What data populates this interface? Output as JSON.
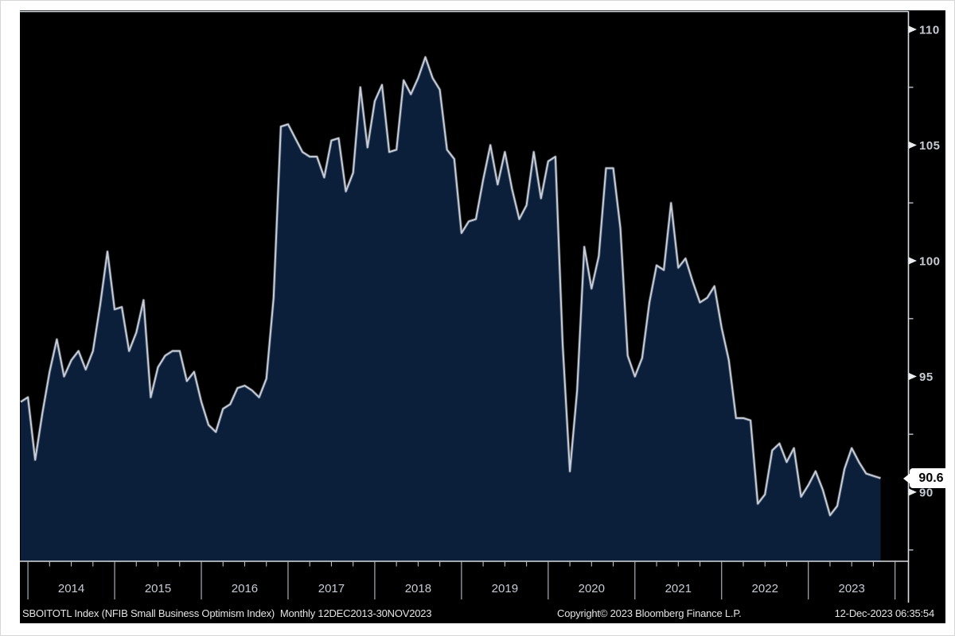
{
  "chart_data": {
    "type": "area",
    "title": "",
    "series": [
      {
        "name": "SBOITOTL Index (NFIB Small Business Optimism Index)",
        "values": [
          93.9,
          94.1,
          91.4,
          93.4,
          95.2,
          96.6,
          95.0,
          95.7,
          96.1,
          95.3,
          96.1,
          98.1,
          100.4,
          97.9,
          98.0,
          96.1,
          96.9,
          98.3,
          94.1,
          95.4,
          95.9,
          96.1,
          96.1,
          94.8,
          95.2,
          93.9,
          92.9,
          92.6,
          93.6,
          93.8,
          94.5,
          94.6,
          94.4,
          94.1,
          94.9,
          98.4,
          105.8,
          105.9,
          105.3,
          104.7,
          104.5,
          104.5,
          103.6,
          105.2,
          105.3,
          103.0,
          103.8,
          107.5,
          104.9,
          106.9,
          107.6,
          104.7,
          104.8,
          107.8,
          107.2,
          107.9,
          108.8,
          107.9,
          107.4,
          104.8,
          104.4,
          101.2,
          101.7,
          101.8,
          103.5,
          105.0,
          103.3,
          104.7,
          103.1,
          101.8,
          102.4,
          104.7,
          102.7,
          104.3,
          104.5,
          96.4,
          90.9,
          94.4,
          100.6,
          98.8,
          100.2,
          104.0,
          104.0,
          101.4,
          95.9,
          95.0,
          95.8,
          98.2,
          99.8,
          99.6,
          102.5,
          99.7,
          100.1,
          99.1,
          98.2,
          98.4,
          98.9,
          97.1,
          95.7,
          93.2,
          93.2,
          93.1,
          89.5,
          89.9,
          91.8,
          92.1,
          91.3,
          91.9,
          89.8,
          90.3,
          90.9,
          90.1,
          89.0,
          89.4,
          91.0,
          91.9,
          91.3,
          90.8,
          90.7,
          90.6
        ]
      }
    ],
    "x_interval": "monthly",
    "x_start": "2013-12",
    "x_end": "2023-11",
    "x_year_labels": [
      "2014",
      "2015",
      "2016",
      "2017",
      "2018",
      "2019",
      "2020",
      "2021",
      "2022",
      "2023"
    ],
    "ylim": [
      87.0,
      110.8
    ],
    "yticks": [
      110,
      105,
      100,
      95,
      90
    ],
    "yticks_minor": [
      107.5,
      102.5,
      97.5,
      92.5,
      87.5
    ],
    "grid": false,
    "legend_position": "none",
    "last_value": 90.6,
    "last_value_label": "90.6",
    "colors": {
      "panel_background": "#000000",
      "area_fill": "#0c1f3a",
      "line": "#c8ced9",
      "axis": "#d9dce1",
      "tick": "#b9bfc7",
      "tick_text": "#c6cbd4",
      "badge_background": "#ffffff",
      "badge_text": "#000000",
      "footer_text": "#e3e3e3"
    }
  },
  "footer": {
    "left": "SBOITOTL Index (NFIB Small Business Optimism Index)  Monthly 12DEC2013-30NOV2023",
    "center": "Copyright© 2023 Bloomberg Finance L.P.",
    "right": "12-Dec-2023 06:35:54"
  }
}
